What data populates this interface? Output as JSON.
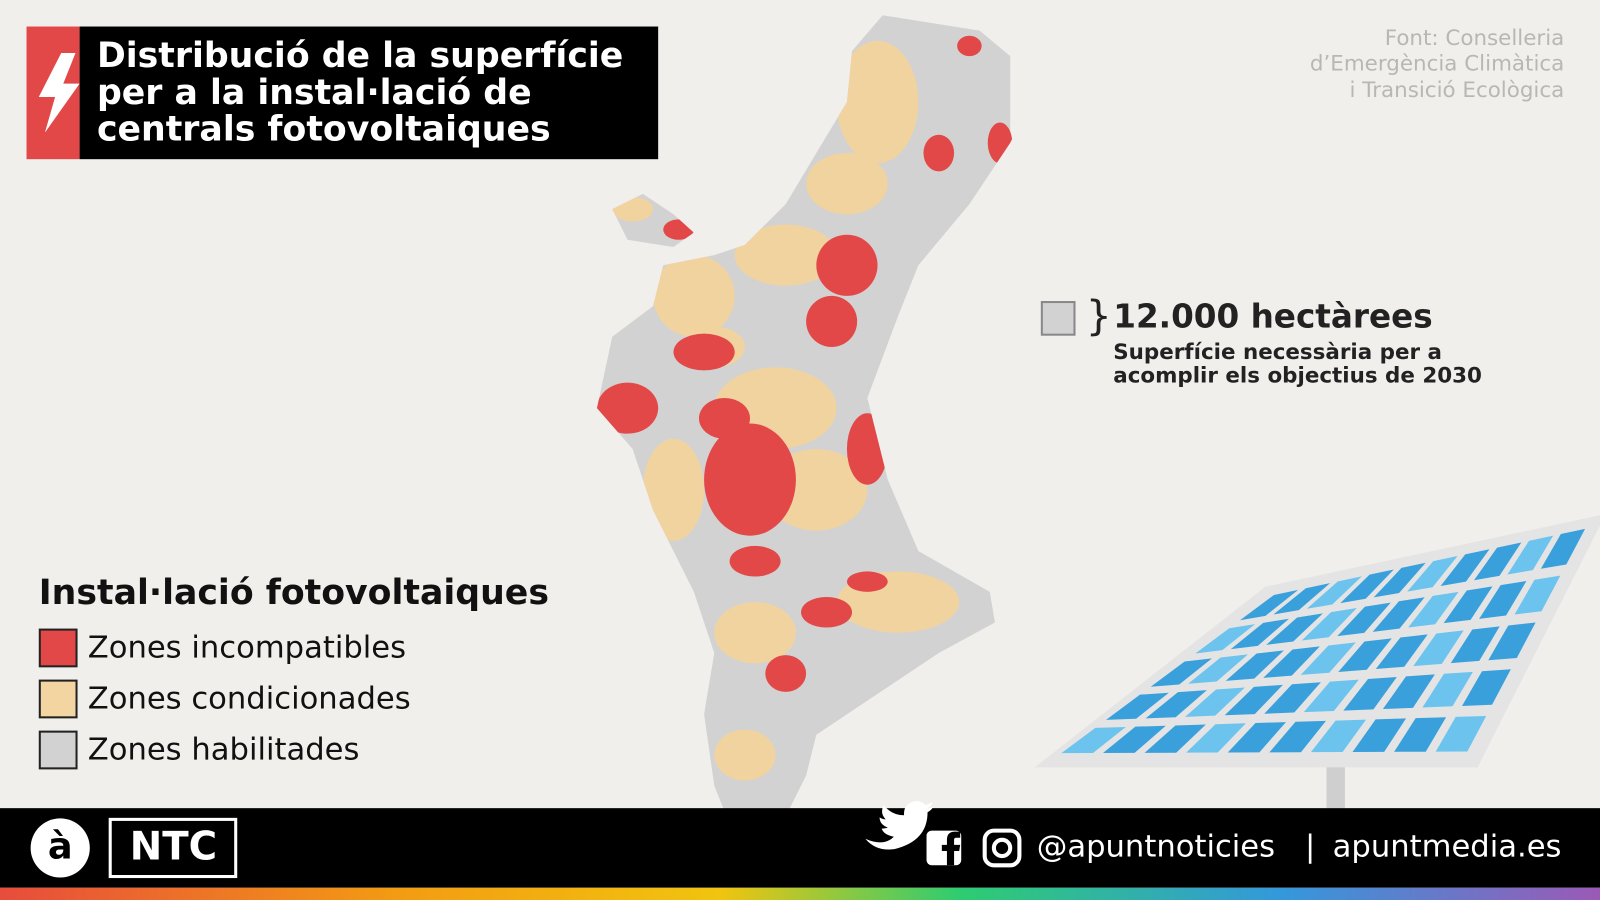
{
  "header": {
    "title": [
      "Distribució de la superfície",
      "per a la instal·lació de",
      "centrals fotovoltaiques"
    ]
  },
  "source": [
    "Font: Conselleria",
    "d’Emergència Climàtica",
    "i Transició Ecològica"
  ],
  "annotation": {
    "value": "12.000 hectàrees",
    "description": [
      "Superfície necessària per a",
      "acomplir els objectius de 2030"
    ]
  },
  "legend": {
    "title": "Instal·lació fotovoltaiques",
    "items": [
      {
        "label": "Zones incompatibles",
        "color": "#e34848"
      },
      {
        "label": "Zones condicionades",
        "color": "#f3d5a2"
      },
      {
        "label": "Zones habilitades",
        "color": "#d2d2d2"
      }
    ]
  },
  "footer": {
    "logo": "à",
    "brand": "NTC",
    "handle": "@apuntnoticies",
    "separator": "|",
    "site": "apuntmedia.es"
  }
}
